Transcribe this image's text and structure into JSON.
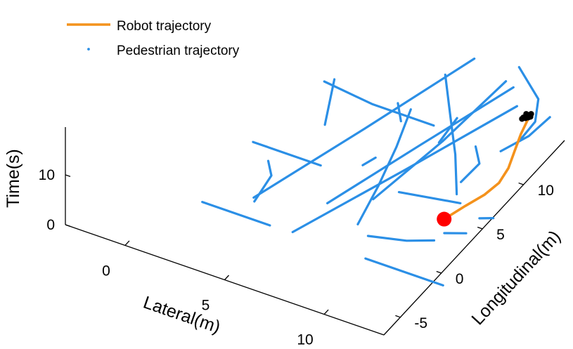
{
  "chart_data": {
    "type": "line3d",
    "title": "",
    "xlabel": "Lateral(m)",
    "ylabel": "Longitudinal(m)",
    "zlabel": "Time(s)",
    "xlim": [
      -3,
      13
    ],
    "ylim": [
      -7,
      15
    ],
    "zlim": [
      0,
      18
    ],
    "xticks": [
      0,
      5,
      10
    ],
    "yticks": [
      -5,
      0,
      5,
      10
    ],
    "zticks": [
      0,
      10
    ],
    "grid": false,
    "legend": {
      "position": "top-left",
      "entries": [
        {
          "label": "Robot trajectory",
          "style": "line",
          "color": "#f4921c"
        },
        {
          "label": "Pedestrian trajectory",
          "style": "dots",
          "color": "#2b8fe6"
        }
      ]
    },
    "colors": {
      "robot": "#f4921c",
      "pedestrian": "#2b8fe6",
      "start_marker": "#ff0000",
      "goal_marker": "#000000"
    },
    "robot_trajectory": {
      "points": [
        [
          11.2,
          4.7,
          0.0
        ],
        [
          11.8,
          5.8,
          1.5
        ],
        [
          12.4,
          6.7,
          3.0
        ],
        [
          12.8,
          7.5,
          4.5
        ],
        [
          12.9,
          8.4,
          6.0
        ],
        [
          12.8,
          9.4,
          7.5
        ],
        [
          12.7,
          10.4,
          9.0
        ],
        [
          12.7,
          11.3,
          10.5
        ]
      ],
      "start_marker": [
        11.2,
        4.7,
        0.0
      ],
      "goal_marker": [
        12.6,
        11.3,
        10.9
      ]
    },
    "pedestrian_trajectories": [
      {
        "points": [
          [
            1.4,
            -1.0,
            0.0
          ],
          [
            4.8,
            -1.0,
            0.0
          ]
        ]
      },
      {
        "points": [
          [
            9.6,
            -1.0,
            0.0
          ],
          [
            13.5,
            -1.0,
            0.0
          ]
        ]
      },
      {
        "points": [
          [
            8.9,
            1.0,
            0.0
          ],
          [
            10.8,
            1.1,
            1.5
          ],
          [
            12.1,
            1.3,
            3.0
          ]
        ]
      },
      {
        "points": [
          [
            11.7,
            3.5,
            0.0
          ],
          [
            12.8,
            3.5,
            1.5
          ]
        ]
      },
      {
        "points": [
          [
            12.6,
            5.6,
            0.5
          ],
          [
            13.3,
            5.6,
            1.5
          ]
        ]
      },
      {
        "points": [
          [
            7.5,
            12.4,
            0.0
          ],
          [
            5.8,
            9.0,
            8.0
          ],
          [
            4.6,
            6.1,
            16.0
          ]
        ]
      },
      {
        "points": [
          [
            8.1,
            1.7,
            0.0
          ],
          [
            8.4,
            3.5,
            5.0
          ],
          [
            8.6,
            5.2,
            10.0
          ],
          [
            8.7,
            6.7,
            15.0
          ]
        ]
      },
      {
        "points": [
          [
            10.8,
            7.2,
            0.0
          ],
          [
            10.4,
            8.0,
            6.0
          ],
          [
            9.9,
            8.6,
            12.0
          ],
          [
            9.4,
            9.2,
            18.5
          ]
        ]
      },
      {
        "points": [
          [
            5.9,
            -0.9,
            0.0
          ],
          [
            9.4,
            4.4,
            8.0
          ],
          [
            12.8,
            9.7,
            16.0
          ]
        ]
      },
      {
        "points": [
          [
            7.8,
            4.3,
            0.0
          ],
          [
            9.8,
            7.9,
            8.0
          ],
          [
            11.5,
            11.5,
            16.0
          ]
        ]
      },
      {
        "points": [
          [
            6.2,
            2.6,
            0.0
          ],
          [
            9.1,
            7.0,
            8.0
          ],
          [
            12.0,
            11.2,
            16.0
          ]
        ]
      },
      {
        "points": [
          [
            11.3,
            13.6,
            0.0
          ],
          [
            12.1,
            13.6,
            5.0
          ],
          [
            12.3,
            13.5,
            10.0
          ],
          [
            11.5,
            13.1,
            16.0
          ]
        ]
      },
      {
        "points": [
          [
            3.2,
            0.9,
            0.0
          ],
          [
            6.4,
            6.7,
            8.0
          ],
          [
            9.5,
            12.5,
            16.0
          ]
        ]
      },
      {
        "points": [
          [
            1.6,
            4.7,
            2.2
          ],
          [
            5.0,
            4.7,
            2.2
          ]
        ]
      },
      {
        "points": [
          [
            3.4,
            0.5,
            0.2
          ],
          [
            3.8,
            1.6,
            4.0
          ],
          [
            3.6,
            1.7,
            6.5
          ]
        ]
      },
      {
        "points": [
          [
            8.6,
            5.5,
            0.4
          ],
          [
            11.4,
            6.2,
            0.8
          ]
        ]
      },
      {
        "points": [
          [
            10.6,
            8.2,
            0.4
          ],
          [
            11.2,
            9.0,
            3.5
          ],
          [
            10.8,
            9.5,
            5.5
          ]
        ]
      },
      {
        "points": [
          [
            6.1,
            11.8,
            0.0
          ],
          [
            5.7,
            12.4,
            2.0
          ]
        ]
      },
      {
        "points": [
          [
            6.2,
            6.9,
            0.0
          ],
          [
            6.6,
            7.5,
            1.0
          ]
        ]
      },
      {
        "points": [
          [
            12.8,
            7.7,
            10.5
          ],
          [
            13.6,
            9.2,
            12.0
          ],
          [
            14.0,
            10.8,
            13.5
          ]
        ]
      },
      {
        "points": [
          [
            3.6,
            8.6,
            1.5
          ],
          [
            3.5,
            10.0,
            8.0
          ]
        ]
      },
      {
        "points": [
          [
            8.3,
            11.1,
            0.0
          ],
          [
            8.3,
            13.3,
            1.0
          ]
        ]
      },
      {
        "points": [
          [
            13.6,
            16.7,
            0.0
          ],
          [
            14.5,
            16.7,
            1.2
          ]
        ]
      }
    ]
  }
}
